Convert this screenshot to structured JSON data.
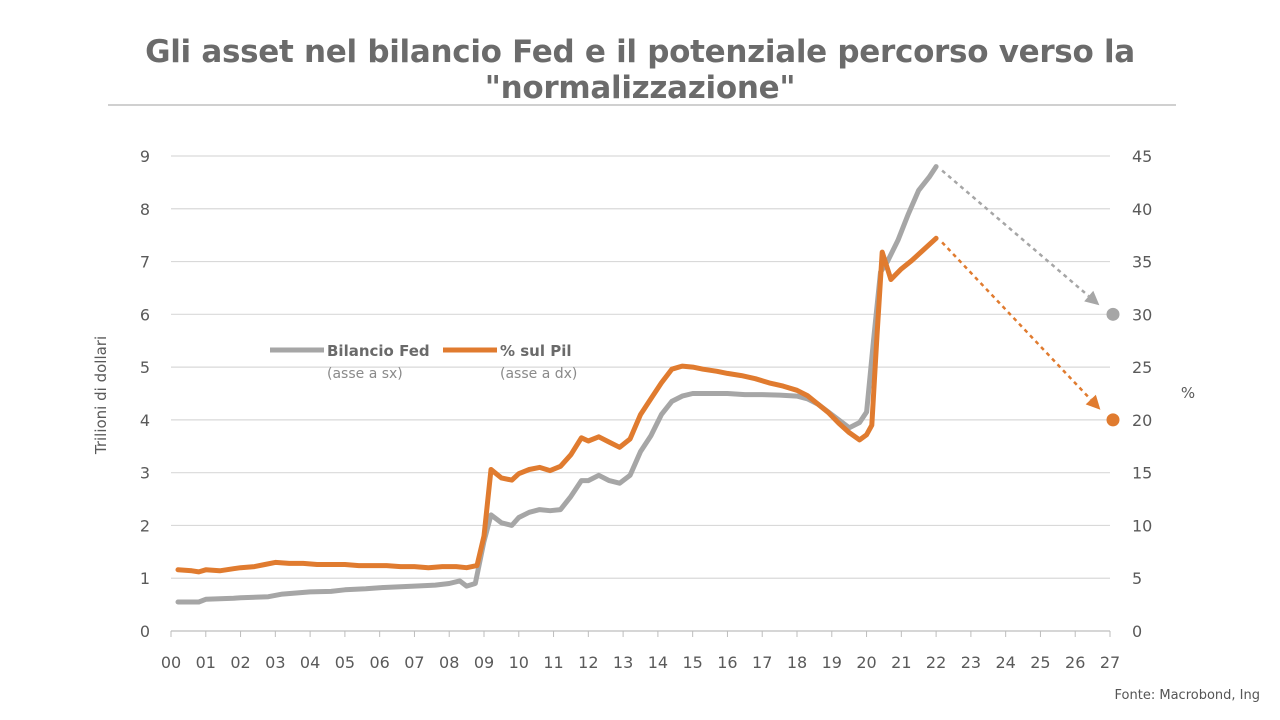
{
  "title": "Gli asset nel bilancio Fed e il potenziale percorso verso la \"normalizzazione\"",
  "source": "Fonte: Macrobond, Ing",
  "colors": {
    "fed": "#a6a6a6",
    "pil": "#e07b2f",
    "grid": "#d9d9d9",
    "text": "#5a5a5a"
  },
  "chart_data": {
    "type": "line",
    "ylabel": "Trilioni di dollari",
    "y2label": "%",
    "ylim": [
      0,
      9
    ],
    "y2lim": [
      0,
      45
    ],
    "yticks": [
      "0",
      "1",
      "2",
      "3",
      "4",
      "5",
      "6",
      "7",
      "8",
      "9"
    ],
    "y2ticks": [
      "0",
      "5",
      "10",
      "15",
      "20",
      "25",
      "30",
      "35",
      "40",
      "45"
    ],
    "xlim": [
      2000,
      2027
    ],
    "xticks": [
      "00",
      "01",
      "02",
      "03",
      "04",
      "05",
      "06",
      "07",
      "08",
      "09",
      "10",
      "11",
      "12",
      "13",
      "14",
      "15",
      "16",
      "17",
      "18",
      "19",
      "20",
      "21",
      "22",
      "23",
      "24",
      "25",
      "26",
      "27"
    ],
    "grid": true,
    "legend_position": "upper-left",
    "series": [
      {
        "name": "Bilancio Fed",
        "note": "(asse a sx)",
        "axis": "left",
        "color": "#a6a6a6",
        "x": [
          2000.2,
          2000.8,
          2001.0,
          2001.8,
          2002.0,
          2002.8,
          2003.2,
          2003.6,
          2004.0,
          2004.6,
          2005.0,
          2005.6,
          2006.0,
          2006.6,
          2007.0,
          2007.6,
          2008.0,
          2008.3,
          2008.5,
          2008.75,
          2009.0,
          2009.2,
          2009.5,
          2009.8,
          2010.0,
          2010.3,
          2010.6,
          2010.9,
          2011.2,
          2011.5,
          2011.8,
          2012.0,
          2012.3,
          2012.6,
          2012.9,
          2013.2,
          2013.5,
          2013.8,
          2014.1,
          2014.4,
          2014.7,
          2015.0,
          2015.5,
          2016.0,
          2016.5,
          2017.0,
          2017.5,
          2018.0,
          2018.3,
          2018.6,
          2018.9,
          2019.2,
          2019.5,
          2019.8,
          2020.0,
          2020.2,
          2020.4,
          2020.6,
          2020.9,
          2021.2,
          2021.5,
          2021.8,
          2022.0
        ],
        "values": [
          0.55,
          0.55,
          0.6,
          0.62,
          0.63,
          0.65,
          0.7,
          0.72,
          0.74,
          0.75,
          0.78,
          0.8,
          0.82,
          0.84,
          0.85,
          0.87,
          0.9,
          0.95,
          0.85,
          0.9,
          1.7,
          2.2,
          2.05,
          2.0,
          2.15,
          2.25,
          2.3,
          2.28,
          2.3,
          2.55,
          2.85,
          2.85,
          2.95,
          2.85,
          2.8,
          2.95,
          3.4,
          3.7,
          4.1,
          4.35,
          4.45,
          4.5,
          4.5,
          4.5,
          4.48,
          4.48,
          4.47,
          4.45,
          4.4,
          4.3,
          4.15,
          4.0,
          3.85,
          3.95,
          4.15,
          5.5,
          6.8,
          7.0,
          7.4,
          7.9,
          8.35,
          8.6,
          8.8
        ]
      },
      {
        "name": "% sul Pil",
        "note": "(asse a dx)",
        "axis": "right",
        "color": "#e07b2f",
        "x": [
          2000.2,
          2000.6,
          2000.8,
          2001.0,
          2001.4,
          2001.8,
          2002.0,
          2002.4,
          2002.7,
          2003.0,
          2003.4,
          2003.8,
          2004.2,
          2004.6,
          2005.0,
          2005.4,
          2005.8,
          2006.2,
          2006.6,
          2007.0,
          2007.4,
          2007.8,
          2008.2,
          2008.5,
          2008.8,
          2009.0,
          2009.2,
          2009.5,
          2009.8,
          2010.0,
          2010.3,
          2010.6,
          2010.9,
          2011.2,
          2011.5,
          2011.8,
          2012.0,
          2012.3,
          2012.6,
          2012.9,
          2013.2,
          2013.5,
          2013.8,
          2014.1,
          2014.4,
          2014.7,
          2015.0,
          2015.3,
          2015.7,
          2016.0,
          2016.4,
          2016.8,
          2017.2,
          2017.6,
          2018.0,
          2018.3,
          2018.6,
          2018.9,
          2019.2,
          2019.5,
          2019.8,
          2020.0,
          2020.15,
          2020.3,
          2020.45,
          2020.7,
          2021.0,
          2021.3,
          2021.6,
          2022.0
        ],
        "values": [
          5.8,
          5.7,
          5.6,
          5.8,
          5.7,
          5.9,
          6.0,
          6.1,
          6.3,
          6.5,
          6.4,
          6.4,
          6.3,
          6.3,
          6.3,
          6.2,
          6.2,
          6.2,
          6.1,
          6.1,
          6.0,
          6.1,
          6.1,
          6.0,
          6.2,
          9.0,
          15.3,
          14.5,
          14.3,
          14.9,
          15.3,
          15.5,
          15.2,
          15.6,
          16.7,
          18.3,
          18.0,
          18.4,
          17.9,
          17.4,
          18.2,
          20.5,
          22.0,
          23.5,
          24.8,
          25.1,
          25.0,
          24.8,
          24.6,
          24.4,
          24.2,
          23.9,
          23.5,
          23.2,
          22.8,
          22.3,
          21.5,
          20.7,
          19.7,
          18.8,
          18.1,
          18.6,
          19.5,
          28.0,
          35.9,
          33.3,
          34.3,
          35.1,
          36.0,
          37.2
        ]
      }
    ],
    "projections": [
      {
        "series": "Bilancio Fed",
        "axis": "left",
        "from": [
          2022.0,
          8.8
        ],
        "to": [
          2027.0,
          6.0
        ],
        "color": "#a6a6a6"
      },
      {
        "series": "% sul Pil",
        "axis": "right",
        "from": [
          2022.0,
          37.2
        ],
        "to": [
          2027.0,
          20.0
        ],
        "color": "#e07b2f"
      }
    ]
  }
}
